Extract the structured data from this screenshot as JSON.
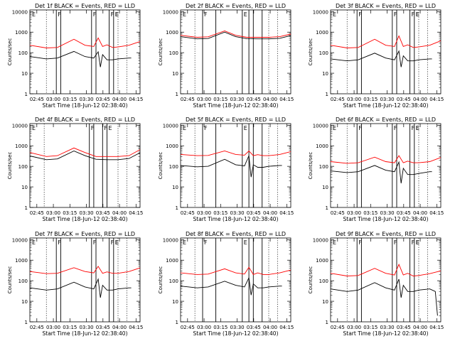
{
  "chart_data": [
    {
      "title": "Det 1f BLACK = Events, RED = LLD",
      "type": "line",
      "detector": "1f",
      "xlabel": "Start Time (18-Jun-12 02:38:40)",
      "ylabel": "Counts/sec",
      "xticks": [
        "02:45",
        "03:00",
        "03:15",
        "03:30",
        "03:45",
        "04:00",
        "04:15"
      ],
      "yticks": [
        "1",
        "10",
        "100",
        "1000",
        "10000"
      ],
      "ylim": [
        1,
        12000
      ],
      "xlim_minutes": [
        0,
        100
      ],
      "yscale": "log",
      "series": [
        {
          "name": "LLD",
          "color": "#ff0000",
          "x": [
            0,
            15,
            25,
            40,
            50,
            58,
            62,
            66,
            70,
            75,
            80,
            90,
            100
          ],
          "y": [
            230,
            170,
            180,
            450,
            230,
            200,
            520,
            200,
            240,
            180,
            190,
            230,
            350
          ]
        },
        {
          "name": "Events",
          "color": "#000000",
          "x": [
            0,
            15,
            25,
            40,
            50,
            58,
            62,
            64,
            66,
            70,
            75,
            80,
            90,
            92
          ],
          "y": [
            65,
            50,
            55,
            115,
            65,
            55,
            110,
            20,
            80,
            45,
            45,
            50,
            55,
            55
          ]
        }
      ],
      "markers": {
        "solid": [
          24,
          28,
          56,
          60,
          72,
          76
        ],
        "dotted": [
          15,
          80,
          88
        ],
        "labels": [
          "F",
          "F",
          "F",
          "E",
          "E"
        ]
      }
    },
    {
      "title": "Det 2f BLACK = Events, RED = LLD",
      "type": "line",
      "detector": "2f",
      "xlabel": "Start Time (18-Jun-12 02:38:40)",
      "ylabel": "Counts/sec",
      "xticks": [
        "02:45",
        "03:00",
        "03:15",
        "03:30",
        "03:45",
        "04:00",
        "04:15"
      ],
      "yticks": [
        "1",
        "10",
        "100",
        "1000",
        "10000"
      ],
      "ylim": [
        1,
        12000
      ],
      "xlim_minutes": [
        0,
        100
      ],
      "yscale": "log",
      "series": [
        {
          "name": "LLD",
          "color": "#ff0000",
          "x": [
            0,
            15,
            25,
            40,
            50,
            60,
            70,
            80,
            90,
            100
          ],
          "y": [
            700,
            560,
            590,
            1150,
            700,
            560,
            560,
            560,
            600,
            800
          ]
        },
        {
          "name": "Events",
          "color": "#000000",
          "x": [
            0,
            15,
            25,
            40,
            50,
            60,
            70,
            80,
            90,
            100
          ],
          "y": [
            600,
            470,
            490,
            1000,
            600,
            480,
            470,
            470,
            500,
            680
          ]
        }
      ],
      "markers": {
        "solid": [
          20,
          32,
          56,
          62,
          66,
          74
        ],
        "dotted": [
          13,
          80,
          88
        ],
        "labels": [
          "F",
          "E"
        ]
      }
    },
    {
      "title": "Det 3f BLACK = Events, RED = LLD",
      "type": "line",
      "detector": "3f",
      "xlabel": "Start Time (18-Jun-12 02:38:40)",
      "ylabel": "Counts/sec",
      "xticks": [
        "02:45",
        "03:00",
        "03:15",
        "03:30",
        "03:45",
        "04:00",
        "04:15"
      ],
      "yticks": [
        "1",
        "10",
        "100",
        "1000",
        "10000"
      ],
      "ylim": [
        1,
        12000
      ],
      "xlim_minutes": [
        0,
        100
      ],
      "yscale": "log",
      "series": [
        {
          "name": "LLD",
          "color": "#ff0000",
          "x": [
            0,
            15,
            25,
            40,
            50,
            58,
            62,
            66,
            70,
            75,
            80,
            90,
            100
          ],
          "y": [
            230,
            170,
            180,
            450,
            230,
            200,
            650,
            200,
            240,
            180,
            190,
            230,
            380
          ]
        },
        {
          "name": "Events",
          "color": "#000000",
          "x": [
            0,
            15,
            25,
            40,
            50,
            58,
            62,
            64,
            66,
            70,
            75,
            80,
            90,
            92
          ],
          "y": [
            50,
            40,
            45,
            95,
            55,
            45,
            120,
            20,
            70,
            40,
            40,
            45,
            50,
            50
          ]
        }
      ],
      "markers": {
        "solid": [
          24,
          28,
          56,
          60,
          72,
          76
        ],
        "dotted": [
          15,
          80,
          88
        ],
        "labels": [
          "F",
          "F",
          "F",
          "E",
          "E"
        ]
      }
    },
    {
      "title": "Det 4f BLACK = Events, RED = LLD",
      "type": "line",
      "detector": "4f",
      "xlabel": "Start Time (18-Jun-12 02:38:40)",
      "ylabel": "Counts/sec",
      "xticks": [
        "02:45",
        "03:00",
        "03:15",
        "03:30",
        "03:45",
        "04:00",
        "04:15"
      ],
      "yticks": [
        "1",
        "10",
        "100",
        "1000",
        "10000"
      ],
      "ylim": [
        1,
        12000
      ],
      "xlim_minutes": [
        0,
        100
      ],
      "yscale": "log",
      "series": [
        {
          "name": "LLD",
          "color": "#ff0000",
          "x": [
            0,
            15,
            25,
            40,
            50,
            60,
            70,
            80,
            90,
            100
          ],
          "y": [
            470,
            300,
            330,
            780,
            470,
            300,
            300,
            300,
            330,
            650
          ]
        },
        {
          "name": "Events",
          "color": "#000000",
          "x": [
            0,
            15,
            25,
            40,
            50,
            60,
            70,
            80,
            90,
            100
          ],
          "y": [
            320,
            210,
            230,
            560,
            330,
            220,
            210,
            210,
            240,
            460
          ]
        }
      ],
      "markers": {
        "solid": [
          54,
          58,
          66,
          70
        ],
        "dotted": [
          13,
          80,
          88
        ],
        "labels": [
          "F",
          "F",
          "E"
        ]
      }
    },
    {
      "title": "Det 5f BLACK = Events, RED = LLD",
      "type": "line",
      "detector": "5f",
      "xlabel": "Start Time (18-Jun-12 02:38:40)",
      "ylabel": "Counts/sec",
      "xticks": [
        "02:45",
        "03:00",
        "03:15",
        "03:30",
        "03:45",
        "04:00",
        "04:15"
      ],
      "yticks": [
        "1",
        "10",
        "100",
        "1000",
        "10000"
      ],
      "ylim": [
        1,
        12000
      ],
      "xlim_minutes": [
        0,
        100
      ],
      "yscale": "log",
      "series": [
        {
          "name": "LLD",
          "color": "#ff0000",
          "x": [
            0,
            15,
            25,
            40,
            50,
            58,
            62,
            66,
            70,
            75,
            80,
            90,
            100
          ],
          "y": [
            380,
            330,
            340,
            560,
            380,
            350,
            560,
            330,
            370,
            330,
            330,
            380,
            520
          ]
        },
        {
          "name": "Events",
          "color": "#000000",
          "x": [
            0,
            15,
            25,
            40,
            50,
            58,
            62,
            64,
            66,
            70,
            75,
            80,
            90,
            92
          ],
          "y": [
            110,
            95,
            100,
            220,
            120,
            105,
            330,
            30,
            120,
            90,
            90,
            100,
            110,
            110
          ]
        }
      ],
      "markers": {
        "solid": [
          20,
          32,
          56,
          62,
          66,
          74
        ],
        "dotted": [
          13,
          80,
          88
        ],
        "labels": [
          "F",
          "E"
        ]
      }
    },
    {
      "title": "Det 6f BLACK = Events, RED = LLD",
      "type": "line",
      "detector": "6f",
      "xlabel": "Start Time (18-Jun-12 02:38:40)",
      "ylabel": "Counts/sec",
      "xticks": [
        "02:45",
        "03:00",
        "03:15",
        "03:30",
        "03:45",
        "04:00",
        "04:15"
      ],
      "yticks": [
        "1",
        "10",
        "100",
        "1000",
        "10000"
      ],
      "ylim": [
        1,
        12000
      ],
      "xlim_minutes": [
        0,
        100
      ],
      "yscale": "log",
      "series": [
        {
          "name": "LLD",
          "color": "#ff0000",
          "x": [
            0,
            15,
            25,
            40,
            50,
            58,
            62,
            66,
            70,
            75,
            80,
            90,
            100
          ],
          "y": [
            170,
            140,
            150,
            280,
            170,
            150,
            330,
            150,
            180,
            150,
            150,
            170,
            270
          ]
        },
        {
          "name": "Events",
          "color": "#000000",
          "x": [
            0,
            15,
            25,
            40,
            50,
            58,
            62,
            64,
            66,
            70,
            75,
            80,
            90,
            92
          ],
          "y": [
            60,
            50,
            55,
            110,
            65,
            55,
            160,
            15,
            80,
            40,
            40,
            45,
            55,
            55
          ]
        }
      ],
      "markers": {
        "solid": [
          24,
          28,
          56,
          60,
          72,
          76
        ],
        "dotted": [
          15,
          80,
          88
        ],
        "labels": [
          "F",
          "F",
          "F",
          "E",
          "E"
        ]
      }
    },
    {
      "title": "Det 7f BLACK = Events, RED = LLD",
      "type": "line",
      "detector": "7f",
      "xlabel": "Start Time (18-Jun-12 02:38:40)",
      "ylabel": "Counts/sec",
      "xticks": [
        "02:45",
        "03:00",
        "03:15",
        "03:30",
        "03:45",
        "04:00",
        "04:15"
      ],
      "yticks": [
        "1",
        "10",
        "100",
        "1000",
        "10000"
      ],
      "ylim": [
        1,
        12000
      ],
      "xlim_minutes": [
        0,
        100
      ],
      "yscale": "log",
      "series": [
        {
          "name": "LLD",
          "color": "#ff0000",
          "x": [
            0,
            15,
            25,
            40,
            50,
            58,
            62,
            66,
            70,
            75,
            80,
            90,
            100
          ],
          "y": [
            280,
            220,
            230,
            430,
            280,
            240,
            500,
            230,
            270,
            230,
            230,
            280,
            420
          ]
        },
        {
          "name": "Events",
          "color": "#000000",
          "x": [
            0,
            15,
            25,
            40,
            50,
            58,
            62,
            64,
            66,
            70,
            75,
            80,
            90,
            92
          ],
          "y": [
            45,
            35,
            40,
            85,
            50,
            40,
            120,
            15,
            60,
            35,
            35,
            40,
            45,
            45
          ]
        }
      ],
      "markers": {
        "solid": [
          24,
          28,
          56,
          60,
          72,
          76
        ],
        "dotted": [
          15,
          80,
          88
        ],
        "labels": [
          "F",
          "F",
          "F",
          "E",
          "E"
        ]
      }
    },
    {
      "title": "Det 8f BLACK = Events, RED = LLD",
      "type": "line",
      "detector": "8f",
      "xlabel": "Start Time (18-Jun-12 02:38:40)",
      "ylabel": "Counts/sec",
      "xticks": [
        "02:45",
        "03:00",
        "03:15",
        "03:30",
        "03:45",
        "04:00",
        "04:15"
      ],
      "yticks": [
        "1",
        "10",
        "100",
        "1000",
        "10000"
      ],
      "ylim": [
        1,
        12000
      ],
      "xlim_minutes": [
        0,
        100
      ],
      "yscale": "log",
      "series": [
        {
          "name": "LLD",
          "color": "#ff0000",
          "x": [
            0,
            15,
            25,
            40,
            50,
            58,
            62,
            66,
            70,
            75,
            80,
            90,
            100
          ],
          "y": [
            240,
            200,
            210,
            380,
            240,
            210,
            450,
            200,
            240,
            200,
            200,
            240,
            330
          ]
        },
        {
          "name": "Events",
          "color": "#000000",
          "x": [
            0,
            15,
            25,
            40,
            50,
            58,
            62,
            64,
            66,
            70,
            75,
            80,
            90,
            92
          ],
          "y": [
            55,
            45,
            50,
            95,
            60,
            50,
            140,
            20,
            70,
            45,
            45,
            50,
            55,
            55
          ]
        }
      ],
      "markers": {
        "solid": [
          20,
          32,
          56,
          62,
          66,
          74
        ],
        "dotted": [
          13,
          80,
          88
        ],
        "labels": [
          "F",
          "E"
        ]
      }
    },
    {
      "title": "Det 9f BLACK = Events, RED = LLD",
      "type": "line",
      "detector": "9f",
      "xlabel": "Start Time (18-Jun-12 02:38:40)",
      "ylabel": "Counts/sec",
      "xticks": [
        "02:45",
        "03:00",
        "03:15",
        "03:30",
        "03:45",
        "04:00",
        "04:15"
      ],
      "yticks": [
        "1",
        "10",
        "100",
        "1000",
        "10000"
      ],
      "ylim": [
        1,
        12000
      ],
      "xlim_minutes": [
        0,
        100
      ],
      "yscale": "log",
      "series": [
        {
          "name": "LLD",
          "color": "#ff0000",
          "x": [
            0,
            15,
            25,
            40,
            50,
            58,
            62,
            66,
            70,
            75,
            80,
            90,
            100
          ],
          "y": [
            230,
            170,
            180,
            400,
            230,
            190,
            620,
            190,
            230,
            170,
            180,
            220,
            300
          ]
        },
        {
          "name": "Events",
          "color": "#000000",
          "x": [
            0,
            15,
            25,
            40,
            50,
            58,
            62,
            64,
            66,
            70,
            75,
            80,
            90,
            95,
            97
          ],
          "y": [
            40,
            30,
            35,
            80,
            45,
            35,
            120,
            15,
            60,
            30,
            30,
            35,
            40,
            30,
            2
          ]
        }
      ],
      "markers": {
        "solid": [
          24,
          28,
          56,
          60,
          72,
          76
        ],
        "dotted": [
          15,
          80,
          88
        ],
        "labels": [
          "F",
          "F",
          "F",
          "E",
          "E"
        ]
      }
    }
  ]
}
